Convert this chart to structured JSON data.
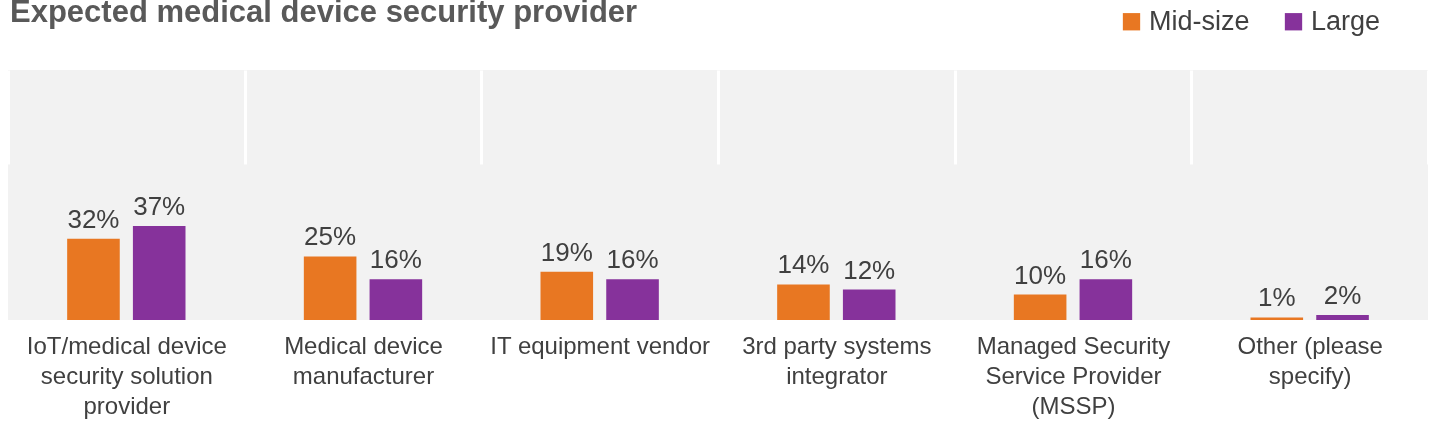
{
  "chart_data": {
    "type": "bar",
    "title": "Expected medical device security provider",
    "categories": [
      "IoT/medical device security solution provider",
      "Medical device manufacturer",
      "IT equipment vendor",
      "3rd party systems integrator",
      "Managed Security Service Provider (MSSP)",
      "Other (please specify)"
    ],
    "series": [
      {
        "name": "Mid-size",
        "color": "#e87722",
        "values": [
          32,
          25,
          19,
          14,
          10,
          1
        ],
        "value_labels": [
          "32%",
          "25%",
          "19%",
          "14%",
          "10%",
          "1%"
        ]
      },
      {
        "name": "Large",
        "color": "#86329b",
        "values": [
          37,
          16,
          16,
          12,
          16,
          2
        ],
        "value_labels": [
          "37%",
          "16%",
          "16%",
          "12%",
          "16%",
          "2%"
        ]
      }
    ],
    "legend": "top right",
    "grid": "x"
  }
}
